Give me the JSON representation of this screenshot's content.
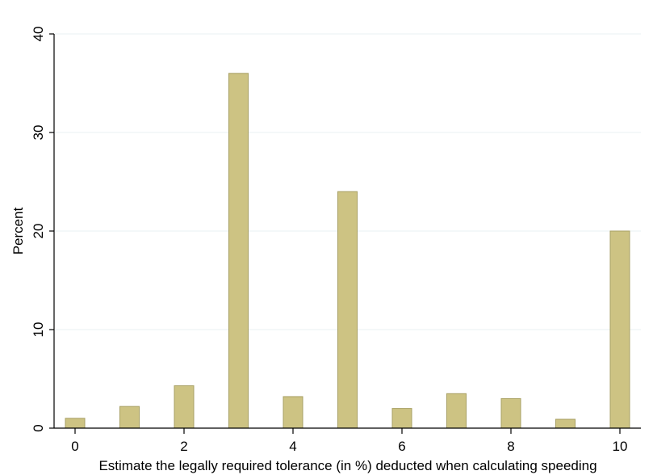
{
  "chart_data": {
    "type": "bar",
    "xlabel": "Estimate the legally required tolerance (in %) deducted when calculating speeding",
    "ylabel": "Percent",
    "x": [
      0,
      1,
      2,
      3,
      4,
      5,
      6,
      7,
      8,
      9,
      10
    ],
    "values": [
      1.0,
      2.2,
      4.3,
      36.0,
      3.2,
      24.0,
      2.0,
      3.5,
      3.0,
      0.9,
      20.0
    ],
    "xlim": [
      0,
      10
    ],
    "ylim": [
      0,
      40
    ],
    "xticks": [
      0,
      2,
      4,
      6,
      8,
      10
    ],
    "yticks": [
      0,
      10,
      20,
      30,
      40
    ],
    "grid": true,
    "bar_color": "#cdc383",
    "bar_edge_color": "#a8a064",
    "grid_color": "#eaf0f3"
  }
}
